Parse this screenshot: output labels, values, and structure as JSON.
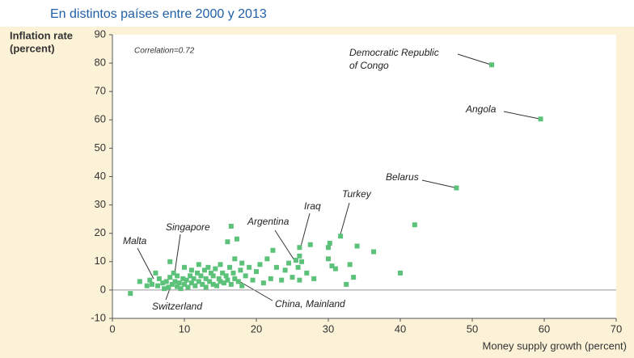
{
  "chart_data": {
    "type": "scatter",
    "title": "En distintos países entre 2000 y 2013",
    "y_label": [
      "Inflation rate",
      "(percent)"
    ],
    "x_label": "Money supply growth (percent)",
    "note": "Correlation=0.72",
    "annotations": [
      {
        "lines": [
          "Democratic Republic",
          "of Congo"
        ]
      },
      {
        "lines": [
          "Angola"
        ]
      },
      {
        "lines": [
          "Belarus"
        ]
      },
      {
        "lines": [
          "Turkey"
        ]
      },
      {
        "lines": [
          "Iraq"
        ]
      },
      {
        "lines": [
          "Argentina"
        ]
      },
      {
        "lines": [
          "Singapore"
        ]
      },
      {
        "lines": [
          "Malta"
        ]
      },
      {
        "lines": [
          "Switzerland"
        ]
      },
      {
        "lines": [
          "China, Mainland"
        ]
      }
    ],
    "xlim": [
      0,
      70
    ],
    "xticks": [
      0,
      10,
      20,
      30,
      40,
      50,
      60,
      70
    ],
    "ylim": [
      -10,
      90
    ],
    "yticks": [
      -10,
      0,
      10,
      20,
      30,
      40,
      50,
      60,
      70,
      80,
      90
    ],
    "color": "#5cc27a",
    "x": [
      2.5,
      3.8,
      4.8,
      5.2,
      5.5,
      6,
      6.3,
      6.5,
      7,
      7.2,
      7.5,
      7.8,
      8,
      8,
      8.3,
      8.5,
      8.7,
      9,
      9,
      9.3,
      9.5,
      9.8,
      10,
      10,
      10.3,
      10.5,
      10.8,
      11,
      11,
      11.3,
      11.5,
      11.8,
      12,
      12,
      12.3,
      12.5,
      12.8,
      13,
      13,
      13.3,
      13.5,
      13.7,
      14,
      14,
      14.3,
      14.5,
      14.8,
      15,
      15,
      15.3,
      15.5,
      15.8,
      16,
      16,
      16.3,
      16.5,
      16.5,
      16.8,
      17,
      17,
      17.3,
      17.5,
      17.8,
      18,
      18,
      18.5,
      19,
      19.5,
      20,
      20.5,
      21,
      21.5,
      22,
      22.3,
      22.8,
      23.5,
      24,
      24.5,
      25,
      25.5,
      25.8,
      26,
      26,
      26.3,
      26,
      27,
      27.5,
      28,
      30,
      30,
      30.2,
      30.5,
      31,
      31.7,
      32.5,
      33,
      33.5,
      34,
      36.3,
      40,
      42,
      47.8,
      52.7,
      59.5
    ],
    "y": [
      -1.2,
      3,
      1.5,
      3.5,
      2,
      6,
      1.5,
      4,
      2.5,
      0.5,
      3,
      1,
      4.5,
      10,
      2,
      6,
      3,
      1.2,
      5,
      2.5,
      0.5,
      4,
      2,
      8,
      3.5,
      1,
      5,
      2.5,
      7,
      4,
      1.5,
      6,
      3,
      9,
      5,
      2,
      7,
      4,
      1,
      8,
      3,
      6,
      2,
      5,
      7.5,
      1.5,
      4,
      9,
      3,
      6,
      2.5,
      5,
      17,
      3.5,
      8,
      22.5,
      2,
      6,
      11,
      4,
      18,
      3,
      7,
      1.5,
      9.5,
      5,
      8,
      3.5,
      6.5,
      9,
      2.5,
      11,
      4,
      14,
      8,
      3.5,
      7,
      9.5,
      4.5,
      10.5,
      8,
      12,
      15,
      10,
      3.5,
      6,
      16,
      4,
      11,
      15,
      16.5,
      8.5,
      7.5,
      19,
      2,
      9,
      4.5,
      15.5,
      13.5,
      6,
      23,
      36,
      79.4,
      60.3
    ]
  }
}
